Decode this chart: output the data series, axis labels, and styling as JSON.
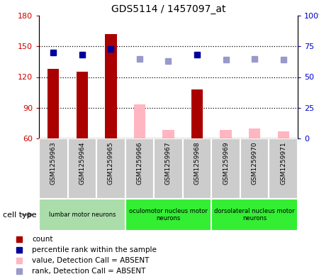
{
  "title": "GDS5114 / 1457097_at",
  "samples": [
    "GSM1259963",
    "GSM1259964",
    "GSM1259965",
    "GSM1259966",
    "GSM1259967",
    "GSM1259968",
    "GSM1259969",
    "GSM1259970",
    "GSM1259971"
  ],
  "count_values": [
    128,
    125,
    162,
    null,
    null,
    108,
    null,
    null,
    null
  ],
  "count_absent_values": [
    null,
    null,
    null,
    93,
    68,
    null,
    68,
    70,
    67
  ],
  "rank_present_values": [
    70,
    68,
    73,
    null,
    null,
    68,
    null,
    null,
    null
  ],
  "rank_absent_values": [
    null,
    null,
    null,
    65,
    63,
    null,
    64,
    65,
    64
  ],
  "ylim_left": [
    60,
    180
  ],
  "ylim_right": [
    0,
    100
  ],
  "yticks_left": [
    60,
    90,
    120,
    150,
    180
  ],
  "ytick_labels_left": [
    "60",
    "90",
    "120",
    "150",
    "180"
  ],
  "ytick_labels_right": [
    "0",
    "25",
    "50",
    "75",
    "100%"
  ],
  "yticks_right": [
    0,
    25,
    50,
    75,
    100
  ],
  "cell_groups": [
    {
      "label": "lumbar motor neurons",
      "start": 0,
      "end": 3,
      "color": "#AADDAA"
    },
    {
      "label": "oculomotor nucleus motor\nneurons",
      "start": 3,
      "end": 6,
      "color": "#33EE33"
    },
    {
      "label": "dorsolateral nucleus motor\nneurons",
      "start": 6,
      "end": 9,
      "color": "#33EE33"
    }
  ],
  "bar_color_present": "#AA0000",
  "bar_color_absent": "#FFB6C1",
  "rank_color_present": "#000099",
  "rank_color_absent": "#9999CC",
  "bar_width": 0.4,
  "grid_color": "black",
  "bg_color": "white",
  "tick_label_color_left": "#CC0000",
  "tick_label_color_right": "#0000CC",
  "gray_col_color": "#CCCCCC",
  "legend_items": [
    {
      "color": "#AA0000",
      "label": "count"
    },
    {
      "color": "#000099",
      "label": "percentile rank within the sample"
    },
    {
      "color": "#FFB6C1",
      "label": "value, Detection Call = ABSENT"
    },
    {
      "color": "#9999CC",
      "label": "rank, Detection Call = ABSENT"
    }
  ]
}
